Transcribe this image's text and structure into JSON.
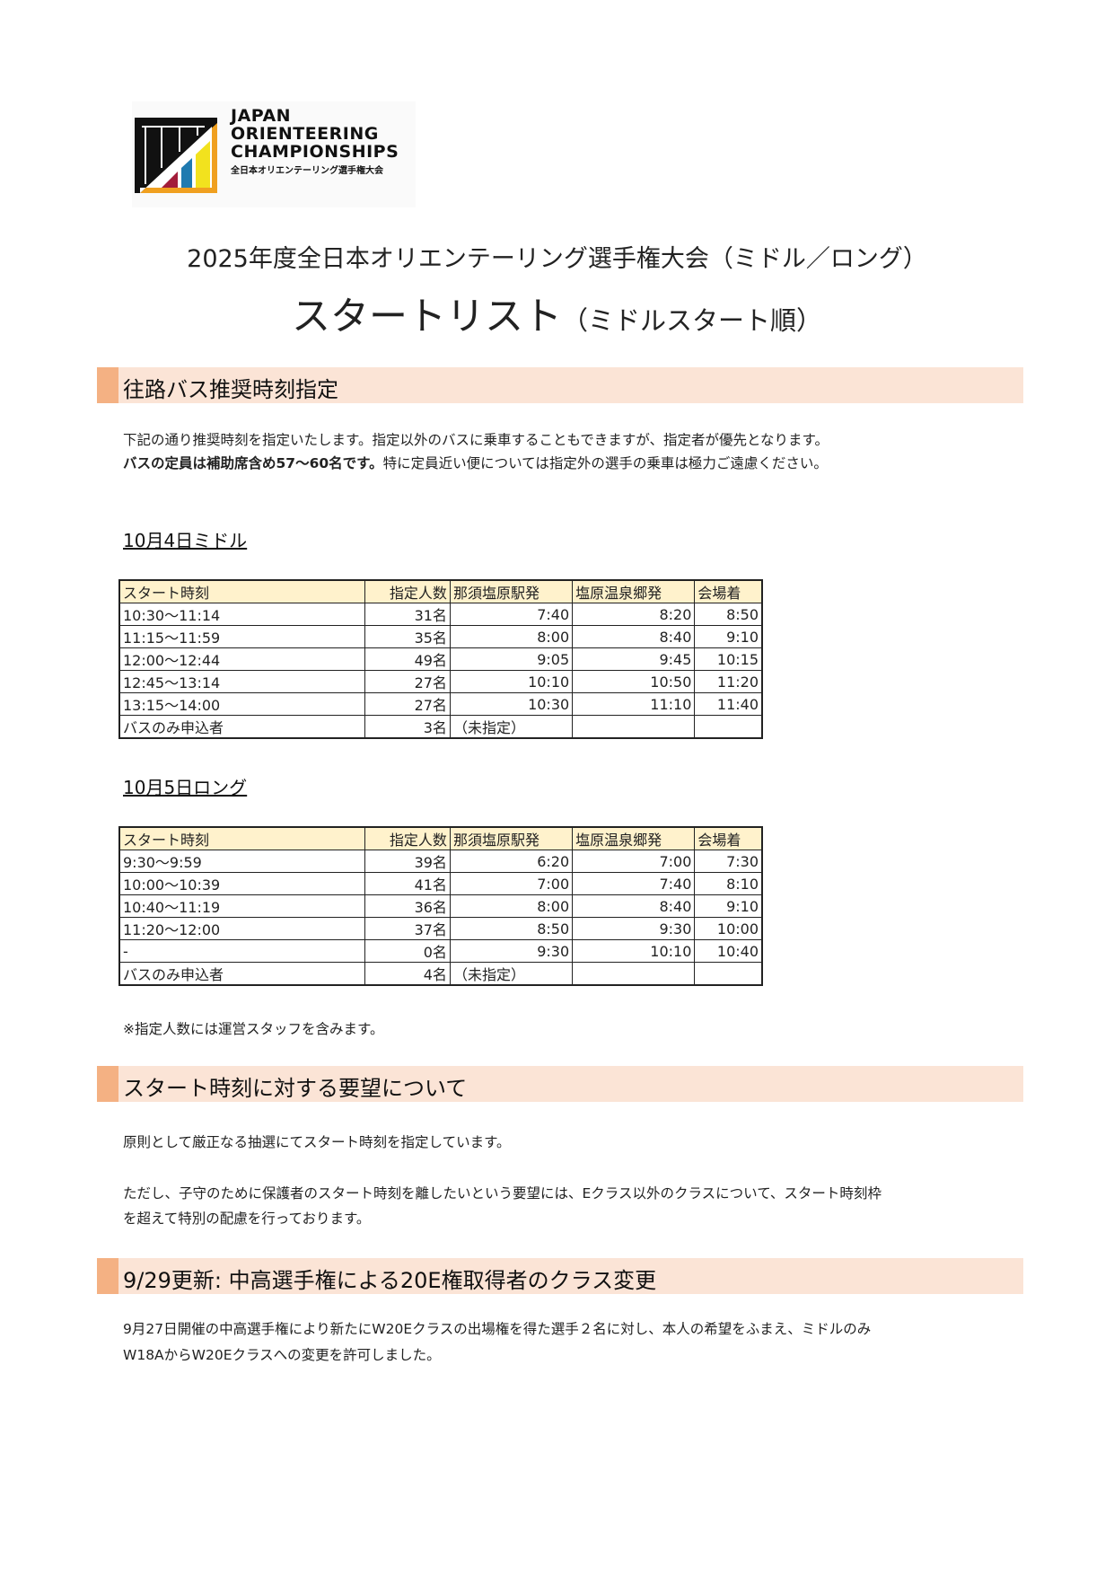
{
  "logo": {
    "line1": "JAPAN",
    "line2": "ORIENTEERING",
    "line3": "CHAMPIONSHIPS",
    "jp": "全日本オリエンテーリング選手権大会",
    "colors": [
      "#111111",
      "#f0a020",
      "#a31d3a",
      "#1f7ab0",
      "#f2e21e"
    ]
  },
  "title": {
    "line1": "2025年度全日本オリエンテーリング選手権大会（ミドル／ロング）",
    "line2_main": "スタートリスト",
    "line2_sub": "（ミドルスタート順）"
  },
  "section1": {
    "heading": "往路バス推奨時刻指定",
    "para1": "下記の通り推奨時刻を指定いたします。指定以外のバスに乗車することもできますが、指定者が優先となります。",
    "para2_bold": "バスの定員は補助席含め57〜60名です。",
    "para2_rest": "特に定員近い便については指定外の選手の乗車は極力ご遠慮ください。",
    "headers": [
      "スタート時刻",
      "指定人数",
      "那須塩原駅発",
      "塩原温泉郷発",
      "会場着"
    ],
    "tables": [
      {
        "title": "10月4日ミドル",
        "rows": [
          [
            "10:30〜11:14",
            "31名",
            "7:40",
            "8:20",
            "8:50"
          ],
          [
            "11:15〜11:59",
            "35名",
            "8:00",
            "8:40",
            "9:10"
          ],
          [
            "12:00〜12:44",
            "49名",
            "9:05",
            "9:45",
            "10:15"
          ],
          [
            "12:45〜13:14",
            "27名",
            "10:10",
            "10:50",
            "11:20"
          ],
          [
            "13:15〜14:00",
            "27名",
            "10:30",
            "11:10",
            "11:40"
          ],
          [
            "バスのみ申込者",
            "3名",
            "（未指定）",
            "",
            ""
          ]
        ]
      },
      {
        "title": "10月5日ロング",
        "rows": [
          [
            "9:30〜9:59",
            "39名",
            "6:20",
            "7:00",
            "7:30"
          ],
          [
            "10:00〜10:39",
            "41名",
            "7:00",
            "7:40",
            "8:10"
          ],
          [
            "10:40〜11:19",
            "36名",
            "8:00",
            "8:40",
            "9:10"
          ],
          [
            "11:20〜12:00",
            "37名",
            "8:50",
            "9:30",
            "10:00"
          ],
          [
            "-",
            "0名",
            "9:30",
            "10:10",
            "10:40"
          ],
          [
            "バスのみ申込者",
            "4名",
            "（未指定）",
            "",
            ""
          ]
        ]
      }
    ],
    "note": "※指定人数には運営スタッフを含みます。"
  },
  "section2": {
    "heading": "スタート時刻に対する要望について",
    "para1": "原則として厳正なる抽選にてスタート時刻を指定しています。",
    "para2_l1": "ただし、子守のために保護者のスタート時刻を離したいという要望には、Eクラス以外のクラスについて、スタート時刻枠",
    "para2_l2": "を超えて特別の配慮を行っております。"
  },
  "section3": {
    "heading": "9/29更新: 中高選手権による20E権取得者のクラス変更",
    "para_l1": "9月27日開催の中高選手権により新たにW20Eクラスの出場権を得た選手２名に対し、本人の希望をふまえ、ミドルのみ",
    "para_l2": "W18AからW20Eクラスへの変更を許可しました。"
  },
  "colors": {
    "section_bg": "#fbe4d6",
    "section_bar": "#f4b183",
    "table_header_bg": "#fff2cc"
  }
}
